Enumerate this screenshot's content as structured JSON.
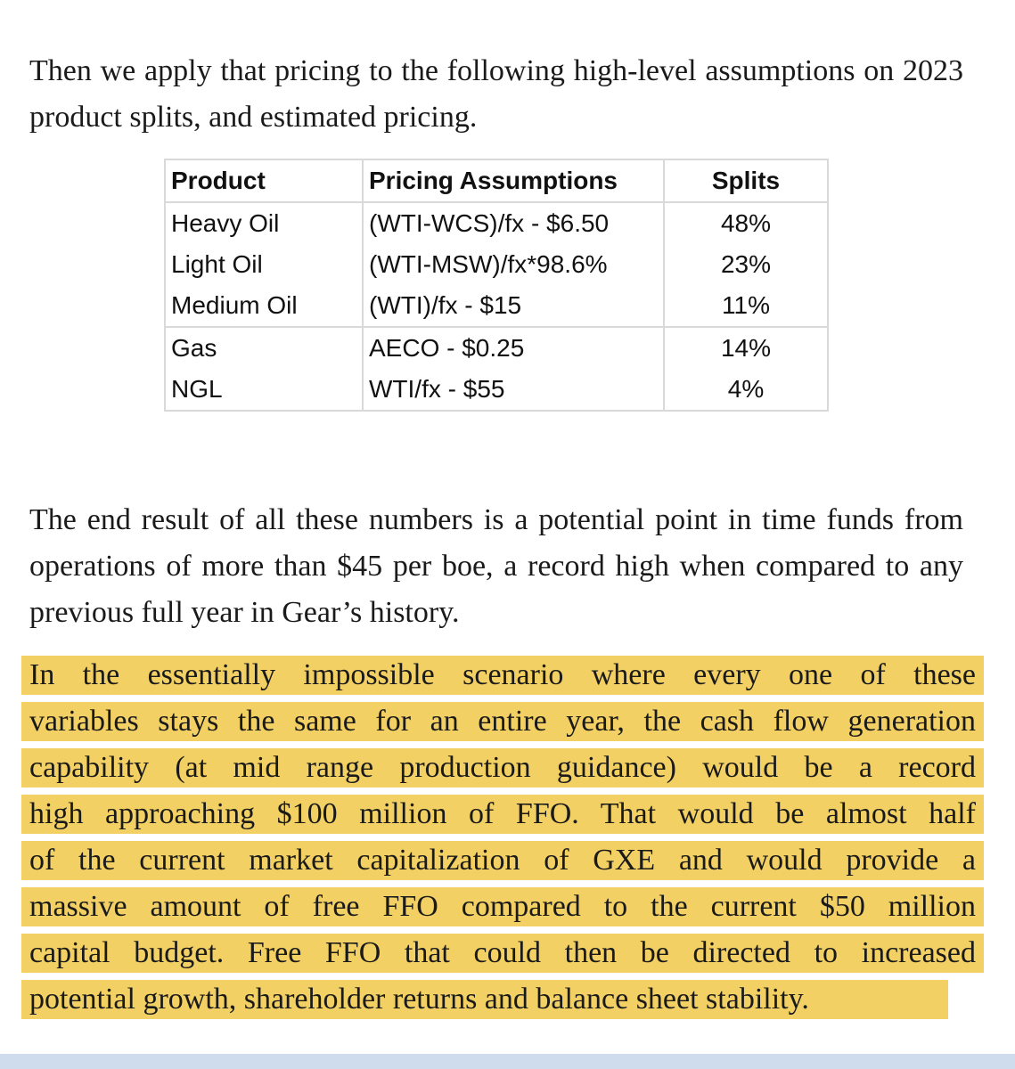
{
  "intro_paragraph": "Then we apply that pricing to the following high-level assumptions on 2023 product splits, and estimated pricing.",
  "table": {
    "headers": {
      "product": "Product",
      "pricing": "Pricing Assumptions",
      "splits": "Splits"
    },
    "rows": [
      {
        "product": "Heavy Oil",
        "pricing": "(WTI-WCS)/fx - $6.50",
        "split": "48%"
      },
      {
        "product": "Light Oil",
        "pricing": "(WTI-MSW)/fx*98.6%",
        "split": "23%"
      },
      {
        "product": "Medium Oil",
        "pricing": "(WTI)/fx - $15",
        "split": "11%"
      },
      {
        "product": "Gas",
        "pricing": "AECO - $0.25",
        "split": "14%"
      },
      {
        "product": "NGL",
        "pricing": "WTI/fx - $55",
        "split": "4%"
      }
    ]
  },
  "result_paragraph": "The end result of all these numbers is a potential point in time funds from operations of more than $45 per boe, a record high when compared to any previous full year in Gear’s history.",
  "highlighted_paragraph": {
    "lines": [
      "In the essentially impossible scenario where every one of these",
      "variables stays the same for an entire year, the cash flow generation",
      "capability (at mid range production guidance) would be a record",
      "high approaching $100 million of FFO. That would be almost half",
      "of the current market capitalization of GXE and would provide a",
      "massive amount of free FFO compared to the current $50 million",
      "capital budget.  Free FFO that could then be directed to increased",
      "potential growth, shareholder returns and balance sheet stability."
    ]
  },
  "colors": {
    "highlight": "#f2d064",
    "table_border": "#d9d9d9",
    "bottom_bar": "#cfdcee",
    "text": "#1a1a1a"
  }
}
